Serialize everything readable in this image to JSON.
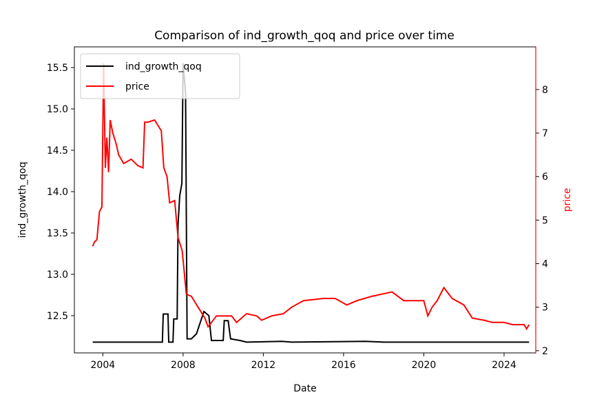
{
  "chart_data": {
    "type": "line",
    "title": "Comparison of ind_growth_qoq and price over time",
    "xlabel": "Date",
    "ylabel_left": "ind_growth_qoq",
    "ylabel_right": "price",
    "x_ticks": [
      "2004",
      "2008",
      "2012",
      "2016",
      "2020",
      "2024"
    ],
    "x_range": [
      "2002-08-01",
      "2025-08-01"
    ],
    "y_left_ticks": [
      "12.5",
      "13.0",
      "13.5",
      "14.0",
      "14.5",
      "15.0",
      "15.5"
    ],
    "y_left_range": [
      12.05,
      15.75
    ],
    "y_right_ticks": [
      "2",
      "3",
      "4",
      "5",
      "6",
      "7",
      "8"
    ],
    "y_right_range": [
      1.95,
      8.98
    ],
    "grid": false,
    "legend_position": "top-left",
    "colors": {
      "ind_growth_qoq": "#000000",
      "price": "#ff0000",
      "right_axis": "#ff0000"
    },
    "series": [
      {
        "name": "ind_growth_qoq",
        "axis": "left",
        "points": [
          [
            "2003-07-01",
            12.18
          ],
          [
            "2006-12-20",
            12.18
          ],
          [
            "2007-01-05",
            12.52
          ],
          [
            "2007-04-01",
            12.52
          ],
          [
            "2007-04-15",
            12.18
          ],
          [
            "2007-07-01",
            12.18
          ],
          [
            "2007-07-15",
            12.46
          ],
          [
            "2007-09-15",
            12.46
          ],
          [
            "2007-10-01",
            13.6
          ],
          [
            "2007-11-01",
            13.95
          ],
          [
            "2007-12-10",
            14.1
          ],
          [
            "2008-01-01",
            15.55
          ],
          [
            "2008-01-20",
            15.4
          ],
          [
            "2008-02-15",
            15.2
          ],
          [
            "2008-03-15",
            12.22
          ],
          [
            "2008-06-01",
            12.22
          ],
          [
            "2008-09-01",
            12.28
          ],
          [
            "2009-01-15",
            12.55
          ],
          [
            "2009-04-15",
            12.5
          ],
          [
            "2009-06-01",
            12.2
          ],
          [
            "2009-07-15",
            12.2
          ],
          [
            "2010-01-01",
            12.2
          ],
          [
            "2010-01-20",
            12.44
          ],
          [
            "2010-04-01",
            12.44
          ],
          [
            "2010-05-15",
            12.22
          ],
          [
            "2010-11-01",
            12.2
          ],
          [
            "2011-03-01",
            12.18
          ],
          [
            "2012-12-01",
            12.19
          ],
          [
            "2013-06-01",
            12.18
          ],
          [
            "2017-02-01",
            12.19
          ],
          [
            "2018-01-01",
            12.18
          ],
          [
            "2025-04-01",
            12.18
          ]
        ]
      },
      {
        "name": "price",
        "axis": "right",
        "points": [
          [
            "2003-07-01",
            4.4
          ],
          [
            "2003-08-01",
            4.5
          ],
          [
            "2003-09-15",
            4.55
          ],
          [
            "2003-11-01",
            5.2
          ],
          [
            "2003-12-15",
            5.3
          ],
          [
            "2004-01-15",
            8.6
          ],
          [
            "2004-02-15",
            6.2
          ],
          [
            "2004-03-15",
            6.9
          ],
          [
            "2004-04-15",
            6.1
          ],
          [
            "2004-05-15",
            7.3
          ],
          [
            "2004-07-01",
            7.0
          ],
          [
            "2004-09-01",
            6.75
          ],
          [
            "2004-10-15",
            6.5
          ],
          [
            "2005-01-15",
            6.3
          ],
          [
            "2005-06-01",
            6.4
          ],
          [
            "2005-10-01",
            6.25
          ],
          [
            "2006-01-01",
            6.2
          ],
          [
            "2006-02-01",
            7.25
          ],
          [
            "2006-04-01",
            7.25
          ],
          [
            "2006-08-01",
            7.3
          ],
          [
            "2006-12-01",
            7.05
          ],
          [
            "2007-01-15",
            6.2
          ],
          [
            "2007-03-15",
            6.0
          ],
          [
            "2007-05-01",
            5.4
          ],
          [
            "2007-08-01",
            5.45
          ],
          [
            "2007-10-01",
            4.6
          ],
          [
            "2007-12-15",
            4.3
          ],
          [
            "2008-01-15",
            3.9
          ],
          [
            "2008-03-01",
            3.3
          ],
          [
            "2008-06-01",
            3.25
          ],
          [
            "2008-10-01",
            3.0
          ],
          [
            "2009-02-01",
            2.75
          ],
          [
            "2009-04-01",
            2.55
          ],
          [
            "2009-09-01",
            2.8
          ],
          [
            "2010-06-01",
            2.8
          ],
          [
            "2010-09-01",
            2.65
          ],
          [
            "2011-03-01",
            2.85
          ],
          [
            "2011-09-01",
            2.8
          ],
          [
            "2011-12-01",
            2.7
          ],
          [
            "2012-06-01",
            2.8
          ],
          [
            "2013-01-01",
            2.85
          ],
          [
            "2013-06-01",
            3.0
          ],
          [
            "2014-01-01",
            3.15
          ],
          [
            "2015-01-01",
            3.2
          ],
          [
            "2015-08-01",
            3.2
          ],
          [
            "2016-03-01",
            3.05
          ],
          [
            "2016-09-01",
            3.15
          ],
          [
            "2017-06-01",
            3.25
          ],
          [
            "2018-06-01",
            3.35
          ],
          [
            "2019-01-01",
            3.15
          ],
          [
            "2020-01-01",
            3.15
          ],
          [
            "2020-03-15",
            2.8
          ],
          [
            "2020-06-01",
            3.0
          ],
          [
            "2020-09-01",
            3.15
          ],
          [
            "2021-01-01",
            3.45
          ],
          [
            "2021-06-01",
            3.2
          ],
          [
            "2022-01-01",
            3.05
          ],
          [
            "2022-06-01",
            2.75
          ],
          [
            "2023-01-01",
            2.7
          ],
          [
            "2023-06-01",
            2.65
          ],
          [
            "2024-01-01",
            2.65
          ],
          [
            "2024-06-01",
            2.6
          ],
          [
            "2025-01-01",
            2.6
          ],
          [
            "2025-02-15",
            2.5
          ],
          [
            "2025-04-01",
            2.6
          ]
        ]
      }
    ]
  }
}
